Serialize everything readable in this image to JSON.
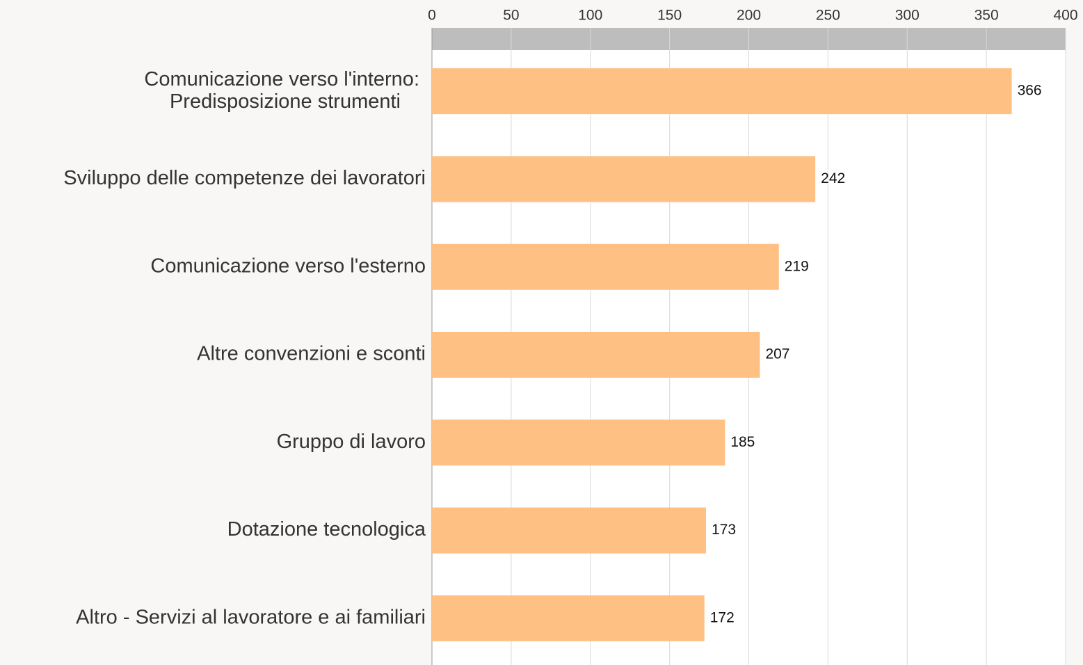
{
  "chart_data": {
    "type": "bar",
    "orientation": "horizontal",
    "categories": [
      [
        "Comunicazione verso l'interno:",
        "Predisposizione strumenti"
      ],
      "Sviluppo delle competenze dei lavoratori",
      "Comunicazione verso l'esterno",
      "Altre convenzioni e sconti",
      "Gruppo di lavoro",
      "Dotazione tecnologica",
      "Altro - Servizi al lavoratore e ai familiari"
    ],
    "values": [
      366,
      242,
      219,
      207,
      185,
      173,
      172
    ],
    "color": "#fec083",
    "xlim": [
      0,
      400
    ],
    "xticks": [
      0,
      50,
      100,
      150,
      200,
      250,
      300,
      350,
      400
    ],
    "grid": true
  }
}
